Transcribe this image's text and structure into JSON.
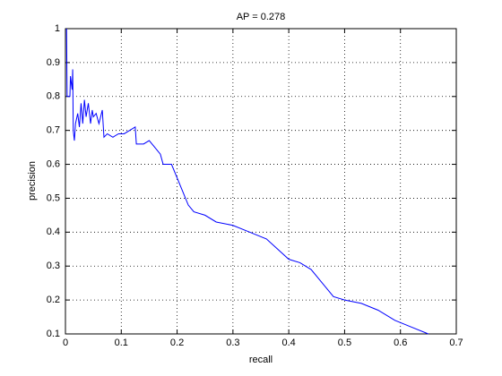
{
  "chart_data": {
    "type": "line",
    "title": "AP = 0.278",
    "x_label": "recall",
    "y_label": "precision",
    "x": [
      0.002,
      0.003,
      0.008,
      0.009,
      0.012,
      0.013,
      0.014,
      0.016,
      0.018,
      0.022,
      0.025,
      0.028,
      0.031,
      0.034,
      0.037,
      0.041,
      0.045,
      0.048,
      0.05,
      0.055,
      0.06,
      0.066,
      0.069,
      0.075,
      0.085,
      0.095,
      0.105,
      0.115,
      0.125,
      0.127,
      0.14,
      0.15,
      0.16,
      0.17,
      0.175,
      0.19,
      0.2,
      0.21,
      0.22,
      0.23,
      0.25,
      0.27,
      0.3,
      0.33,
      0.36,
      0.38,
      0.4,
      0.42,
      0.44,
      0.46,
      0.48,
      0.5,
      0.53,
      0.56,
      0.59,
      0.62,
      0.65
    ],
    "series": [
      {
        "color": "#0000ff",
        "values": [
          1.0,
          0.8,
          0.8,
          0.86,
          0.82,
          0.88,
          0.7,
          0.67,
          0.72,
          0.75,
          0.71,
          0.78,
          0.72,
          0.79,
          0.74,
          0.78,
          0.72,
          0.76,
          0.74,
          0.75,
          0.72,
          0.76,
          0.68,
          0.69,
          0.68,
          0.69,
          0.69,
          0.7,
          0.71,
          0.66,
          0.66,
          0.67,
          0.65,
          0.63,
          0.6,
          0.6,
          0.56,
          0.52,
          0.48,
          0.46,
          0.45,
          0.43,
          0.42,
          0.4,
          0.38,
          0.35,
          0.32,
          0.31,
          0.29,
          0.25,
          0.21,
          0.2,
          0.19,
          0.17,
          0.14,
          0.12,
          0.1
        ]
      }
    ],
    "xlim": [
      0,
      0.7
    ],
    "ylim": [
      0.1,
      1
    ],
    "xticks": [
      0,
      0.1,
      0.2,
      0.3,
      0.4,
      0.5,
      0.6,
      0.7
    ],
    "yticks": [
      0.1,
      0.2,
      0.3,
      0.4,
      0.5,
      0.6,
      0.7,
      0.8,
      0.9,
      1
    ],
    "grid": true
  }
}
